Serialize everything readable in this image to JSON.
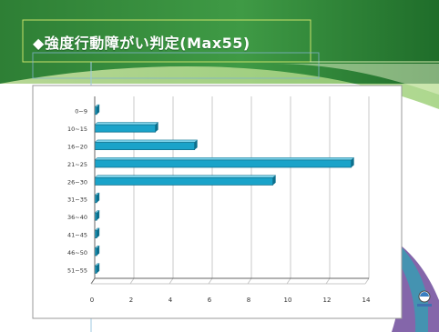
{
  "slide": {
    "title": "◆強度行動障がい判定(Max55)"
  },
  "colors": {
    "header_green": "#2f8a3c",
    "header_light": "#b7dc7c",
    "bar_fill": "#1aa3c9",
    "bar_dark": "#0d6f8c",
    "axis": "#666666",
    "grid": "#c8c8c8"
  },
  "chart_data": {
    "type": "bar",
    "orientation": "horizontal",
    "categories": [
      "0~9",
      "10~15",
      "16~20",
      "21~25",
      "26~30",
      "31~35",
      "36~40",
      "41~45",
      "46~50",
      "51~55"
    ],
    "values": [
      0.1,
      3.1,
      5.1,
      13.1,
      9.1,
      0.1,
      0.1,
      0.1,
      0.1,
      0.1
    ],
    "xlim": [
      0,
      14
    ],
    "xticks": [
      0,
      2,
      4,
      6,
      8,
      10,
      12,
      14
    ],
    "grid": true,
    "title": "",
    "xlabel": "",
    "ylabel": ""
  }
}
